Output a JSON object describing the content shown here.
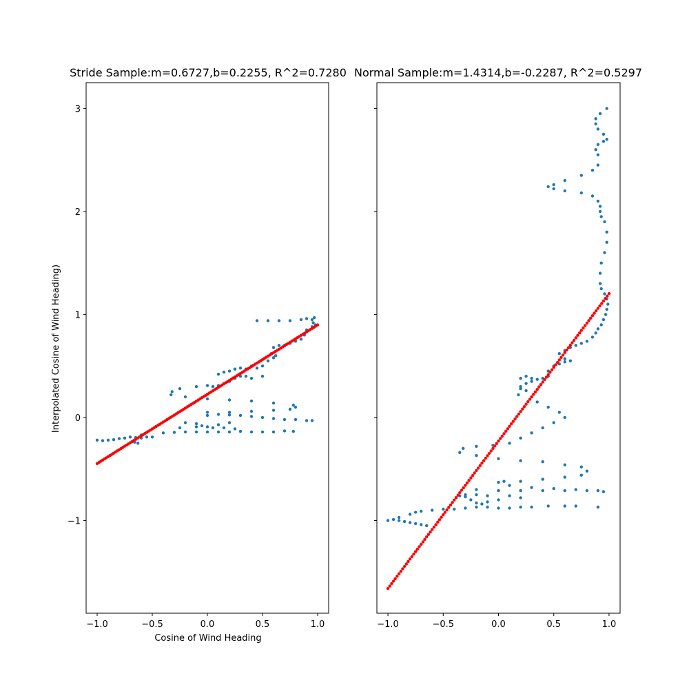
{
  "colors": {
    "scatter": "#1f77b4",
    "fit": "#ff0000",
    "axes": "#000000",
    "background": "#ffffff"
  },
  "chart_data": [
    {
      "type": "scatter",
      "title": "Stride Sample:m=0.6727,b=0.2255, R^2=0.7280",
      "xlabel": "Cosine of Wind Heading",
      "ylabel": "Interpolated Cosine of Wind Heading)",
      "xlim": [
        -1.1,
        1.1
      ],
      "ylim": [
        -1.9,
        3.25
      ],
      "xticks": [
        -1.0,
        -0.5,
        0.0,
        0.5,
        1.0
      ],
      "xtick_labels": [
        "−1.0",
        "−0.5",
        "0.0",
        "0.5",
        "1.0"
      ],
      "yticks": [
        -1,
        0,
        1,
        2,
        3
      ],
      "ytick_labels": [
        "−1",
        "0",
        "1",
        "2",
        "3"
      ],
      "show_ytick_labels": true,
      "grid": false,
      "fit_line": {
        "slope": 0.6727,
        "intercept": 0.2255,
        "x_range": [
          -1.0,
          1.0
        ],
        "color": "red"
      },
      "series": [
        {
          "color": "blue",
          "points": [
            [
              -1.0,
              -0.22
            ],
            [
              -0.95,
              -0.225
            ],
            [
              -0.9,
              -0.22
            ],
            [
              -0.85,
              -0.215
            ],
            [
              -0.8,
              -0.205
            ],
            [
              -0.75,
              -0.2
            ],
            [
              -0.7,
              -0.19
            ],
            [
              -0.65,
              -0.195
            ],
            [
              -0.6,
              -0.2
            ],
            [
              -0.55,
              -0.19
            ],
            [
              -0.5,
              -0.19
            ],
            [
              -0.6,
              -0.17
            ],
            [
              -0.63,
              -0.25
            ],
            [
              -0.66,
              -0.24
            ],
            [
              -0.4,
              -0.15
            ],
            [
              -0.3,
              -0.145
            ],
            [
              -0.2,
              -0.14
            ],
            [
              -0.1,
              -0.14
            ],
            [
              0.0,
              -0.14
            ],
            [
              0.1,
              -0.14
            ],
            [
              0.2,
              -0.14
            ],
            [
              0.3,
              -0.135
            ],
            [
              0.4,
              -0.14
            ],
            [
              0.5,
              -0.14
            ],
            [
              0.6,
              -0.14
            ],
            [
              0.7,
              -0.13
            ],
            [
              0.78,
              -0.135
            ],
            [
              -0.25,
              -0.1
            ],
            [
              -0.1,
              -0.09
            ],
            [
              -0.05,
              -0.08
            ],
            [
              0.0,
              -0.09
            ],
            [
              0.05,
              -0.1
            ],
            [
              0.15,
              -0.1
            ],
            [
              0.25,
              -0.11
            ],
            [
              -0.2,
              -0.05
            ],
            [
              -0.1,
              -0.06
            ],
            [
              0.1,
              -0.07
            ],
            [
              0.2,
              -0.05
            ],
            [
              0.0,
              0.02
            ],
            [
              0.1,
              0.03
            ],
            [
              0.2,
              0.025
            ],
            [
              0.3,
              0.02
            ],
            [
              0.4,
              0.01
            ],
            [
              0.5,
              0.0
            ],
            [
              0.6,
              -0.01
            ],
            [
              0.7,
              -0.02
            ],
            [
              0.8,
              -0.02
            ],
            [
              0.9,
              -0.03
            ],
            [
              0.95,
              -0.03
            ],
            [
              0.0,
              0.05
            ],
            [
              0.2,
              0.05
            ],
            [
              0.4,
              0.06
            ],
            [
              0.6,
              0.07
            ],
            [
              0.75,
              0.08
            ],
            [
              0.8,
              0.1
            ],
            [
              0.78,
              0.12
            ],
            [
              0.6,
              0.14
            ],
            [
              0.4,
              0.16
            ],
            [
              0.2,
              0.17
            ],
            [
              0.0,
              0.18
            ],
            [
              -0.2,
              0.2
            ],
            [
              -0.33,
              0.22
            ],
            [
              -0.32,
              0.25
            ],
            [
              -0.25,
              0.28
            ],
            [
              -0.1,
              0.3
            ],
            [
              0.0,
              0.31
            ],
            [
              0.05,
              0.3
            ],
            [
              0.1,
              0.31
            ],
            [
              0.15,
              0.33
            ],
            [
              0.2,
              0.35
            ],
            [
              0.25,
              0.38
            ],
            [
              0.3,
              0.4
            ],
            [
              0.35,
              0.4
            ],
            [
              0.4,
              0.38
            ],
            [
              0.5,
              0.4
            ],
            [
              0.1,
              0.42
            ],
            [
              0.15,
              0.44
            ],
            [
              0.2,
              0.45
            ],
            [
              0.25,
              0.47
            ],
            [
              0.3,
              0.48
            ],
            [
              0.35,
              0.47
            ],
            [
              0.4,
              0.5
            ],
            [
              0.45,
              0.48
            ],
            [
              0.5,
              0.5
            ],
            [
              0.55,
              0.55
            ],
            [
              0.6,
              0.58
            ],
            [
              0.62,
              0.6
            ],
            [
              0.58,
              0.62
            ],
            [
              0.6,
              0.68
            ],
            [
              0.65,
              0.7
            ],
            [
              0.7,
              0.7
            ],
            [
              0.75,
              0.72
            ],
            [
              0.8,
              0.74
            ],
            [
              0.85,
              0.76
            ],
            [
              0.88,
              0.8
            ],
            [
              0.9,
              0.85
            ],
            [
              0.95,
              0.88
            ],
            [
              0.98,
              0.9
            ],
            [
              0.96,
              0.92
            ],
            [
              0.95,
              0.95
            ],
            [
              0.97,
              0.97
            ],
            [
              0.45,
              0.94
            ],
            [
              0.55,
              0.94
            ],
            [
              0.65,
              0.94
            ],
            [
              0.75,
              0.94
            ],
            [
              0.85,
              0.95
            ],
            [
              0.9,
              0.96
            ]
          ]
        }
      ]
    },
    {
      "type": "scatter",
      "title": "Normal Sample:m=1.4314,b=-0.2287, R^2=0.5297",
      "xlabel": "",
      "ylabel": "",
      "xlim": [
        -1.1,
        1.1
      ],
      "ylim": [
        -1.9,
        3.25
      ],
      "xticks": [
        -1.0,
        -0.5,
        0.0,
        0.5,
        1.0
      ],
      "xtick_labels": [
        "−1.0",
        "−0.5",
        "0.0",
        "0.5",
        "1.0"
      ],
      "yticks": [
        -1,
        0,
        1,
        2,
        3
      ],
      "ytick_labels": [],
      "show_ytick_labels": false,
      "grid": false,
      "fit_line": {
        "slope": 1.4314,
        "intercept": -0.2287,
        "x_range": [
          -1.0,
          1.0
        ],
        "color": "red"
      },
      "series": [
        {
          "color": "blue",
          "points": [
            [
              -1.0,
              -1.0
            ],
            [
              -0.95,
              -0.99
            ],
            [
              -0.9,
              -1.0
            ],
            [
              -0.85,
              -1.01
            ],
            [
              -0.8,
              -1.02
            ],
            [
              -0.75,
              -1.03
            ],
            [
              -0.7,
              -1.04
            ],
            [
              -0.65,
              -1.05
            ],
            [
              -0.9,
              -0.97
            ],
            [
              -0.8,
              -0.94
            ],
            [
              -0.75,
              -0.92
            ],
            [
              -0.7,
              -0.91
            ],
            [
              -0.6,
              -0.9
            ],
            [
              -0.5,
              -0.89
            ],
            [
              -0.4,
              -0.89
            ],
            [
              -0.3,
              -0.88
            ],
            [
              -0.2,
              -0.87
            ],
            [
              -0.1,
              -0.87
            ],
            [
              0.0,
              -0.88
            ],
            [
              0.1,
              -0.88
            ],
            [
              0.2,
              -0.87
            ],
            [
              0.3,
              -0.87
            ],
            [
              0.45,
              -0.86
            ],
            [
              0.6,
              -0.86
            ],
            [
              0.7,
              -0.86
            ],
            [
              0.9,
              -0.87
            ],
            [
              -0.35,
              -0.76
            ],
            [
              -0.3,
              -0.77
            ],
            [
              -0.25,
              -0.8
            ],
            [
              -0.2,
              -0.83
            ],
            [
              -0.15,
              -0.84
            ],
            [
              -0.1,
              -0.82
            ],
            [
              0.0,
              -0.8
            ],
            [
              -0.3,
              -0.75
            ],
            [
              -0.2,
              -0.75
            ],
            [
              -0.1,
              -0.76
            ],
            [
              0.1,
              -0.76
            ],
            [
              0.2,
              -0.78
            ],
            [
              -0.2,
              -0.7
            ],
            [
              0.0,
              -0.71
            ],
            [
              0.2,
              -0.71
            ],
            [
              0.4,
              -0.71
            ],
            [
              0.6,
              -0.71
            ],
            [
              0.8,
              -0.71
            ],
            [
              0.95,
              -0.72
            ],
            [
              0.9,
              -0.71
            ],
            [
              0.7,
              -0.7
            ],
            [
              0.5,
              -0.69
            ],
            [
              0.3,
              -0.68
            ],
            [
              0.1,
              -0.66
            ],
            [
              0.0,
              -0.63
            ],
            [
              0.05,
              -0.62
            ],
            [
              0.2,
              -0.62
            ],
            [
              0.4,
              -0.6
            ],
            [
              0.6,
              -0.58
            ],
            [
              0.75,
              -0.56
            ],
            [
              0.8,
              -0.52
            ],
            [
              0.75,
              -0.48
            ],
            [
              0.6,
              -0.46
            ],
            [
              0.4,
              -0.43
            ],
            [
              0.2,
              -0.42
            ],
            [
              0.0,
              -0.4
            ],
            [
              -0.2,
              -0.37
            ],
            [
              -0.35,
              -0.34
            ],
            [
              -0.32,
              -0.3
            ],
            [
              -0.2,
              -0.28
            ],
            [
              -0.05,
              -0.27
            ],
            [
              0.1,
              -0.25
            ],
            [
              0.2,
              -0.2
            ],
            [
              0.3,
              -0.15
            ],
            [
              0.4,
              -0.1
            ],
            [
              0.5,
              -0.05
            ],
            [
              0.6,
              0.0
            ],
            [
              0.55,
              0.05
            ],
            [
              0.45,
              0.1
            ],
            [
              0.35,
              0.15
            ],
            [
              0.3,
              0.2
            ],
            [
              0.25,
              0.26
            ],
            [
              0.2,
              0.28
            ],
            [
              0.18,
              0.22
            ],
            [
              0.2,
              0.3
            ],
            [
              0.25,
              0.33
            ],
            [
              0.3,
              0.35
            ],
            [
              0.4,
              0.38
            ],
            [
              0.45,
              0.4
            ],
            [
              0.2,
              0.38
            ],
            [
              0.25,
              0.4
            ],
            [
              0.3,
              0.38
            ],
            [
              0.35,
              0.37
            ],
            [
              0.45,
              0.45
            ],
            [
              0.5,
              0.5
            ],
            [
              0.55,
              0.52
            ],
            [
              0.6,
              0.54
            ],
            [
              0.65,
              0.55
            ],
            [
              0.6,
              0.57
            ],
            [
              0.55,
              0.62
            ],
            [
              0.6,
              0.65
            ],
            [
              0.65,
              0.68
            ],
            [
              0.7,
              0.7
            ],
            [
              0.75,
              0.72
            ],
            [
              0.8,
              0.74
            ],
            [
              0.85,
              0.78
            ],
            [
              0.88,
              0.82
            ],
            [
              0.9,
              0.86
            ],
            [
              0.93,
              0.9
            ],
            [
              0.95,
              0.95
            ],
            [
              0.97,
              1.0
            ],
            [
              0.98,
              1.05
            ],
            [
              0.99,
              1.1
            ],
            [
              0.98,
              1.15
            ],
            [
              0.96,
              1.2
            ],
            [
              0.93,
              1.25
            ],
            [
              0.92,
              1.3
            ],
            [
              0.92,
              1.4
            ],
            [
              0.93,
              1.5
            ],
            [
              0.96,
              1.6
            ],
            [
              0.98,
              1.7
            ],
            [
              0.98,
              1.8
            ],
            [
              0.96,
              1.9
            ],
            [
              0.93,
              1.95
            ],
            [
              0.92,
              2.0
            ],
            [
              0.92,
              2.05
            ],
            [
              0.9,
              2.1
            ],
            [
              0.85,
              2.15
            ],
            [
              0.75,
              2.18
            ],
            [
              0.6,
              2.2
            ],
            [
              0.5,
              2.22
            ],
            [
              0.45,
              2.24
            ],
            [
              0.5,
              2.26
            ],
            [
              0.6,
              2.3
            ],
            [
              0.75,
              2.35
            ],
            [
              0.85,
              2.4
            ],
            [
              0.9,
              2.45
            ],
            [
              0.9,
              2.55
            ],
            [
              0.88,
              2.6
            ],
            [
              0.9,
              2.65
            ],
            [
              0.95,
              2.68
            ],
            [
              0.98,
              2.7
            ],
            [
              0.95,
              2.75
            ],
            [
              0.9,
              2.8
            ],
            [
              0.88,
              2.85
            ],
            [
              0.88,
              2.9
            ],
            [
              0.92,
              2.95
            ],
            [
              0.98,
              3.0
            ]
          ]
        }
      ]
    }
  ]
}
